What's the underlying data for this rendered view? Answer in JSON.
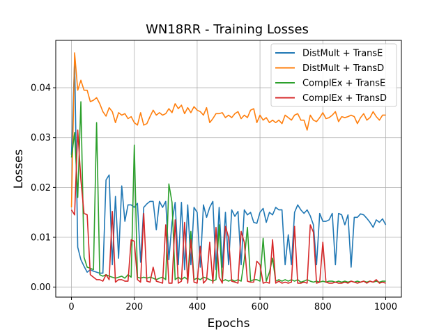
{
  "chart_data": {
    "type": "line",
    "title": "WN18RR - Training Losses",
    "xlabel": "Epochs",
    "ylabel": "Losses",
    "xlim": [
      -50,
      1050
    ],
    "ylim": [
      -0.002,
      0.0495
    ],
    "xticks": [
      0,
      200,
      400,
      600,
      800,
      1000
    ],
    "xtick_labels": [
      "0",
      "200",
      "400",
      "600",
      "800",
      "1000"
    ],
    "yticks": [
      0.0,
      0.01,
      0.02,
      0.03,
      0.04
    ],
    "ytick_labels": [
      "0.00",
      "0.01",
      "0.02",
      "0.03",
      "0.04"
    ],
    "grid": true,
    "legend_position": "top-right",
    "x": [
      0,
      10,
      20,
      30,
      40,
      50,
      60,
      70,
      80,
      90,
      100,
      110,
      120,
      130,
      140,
      150,
      160,
      170,
      180,
      190,
      200,
      210,
      220,
      230,
      240,
      250,
      260,
      270,
      280,
      290,
      300,
      310,
      320,
      330,
      340,
      350,
      360,
      370,
      380,
      390,
      400,
      410,
      420,
      430,
      440,
      450,
      460,
      470,
      480,
      490,
      500,
      510,
      520,
      530,
      540,
      550,
      560,
      570,
      580,
      590,
      600,
      610,
      620,
      630,
      640,
      650,
      660,
      670,
      680,
      690,
      700,
      710,
      720,
      730,
      740,
      750,
      760,
      770,
      780,
      790,
      800,
      810,
      820,
      830,
      840,
      850,
      860,
      870,
      880,
      890,
      900,
      910,
      920,
      930,
      940,
      950,
      960,
      970,
      980,
      990,
      1000
    ],
    "series": [
      {
        "name": "DistMult + TransE",
        "color": "#1f77b4",
        "values": [
          0.0265,
          0.0455,
          0.008,
          0.0055,
          0.0042,
          0.003,
          0.0035,
          0.0032,
          0.003,
          0.0028,
          0.0028,
          0.0215,
          0.0225,
          0.0045,
          0.0182,
          0.0058,
          0.0203,
          0.0132,
          0.0165,
          0.0165,
          0.016,
          0.0168,
          0.005,
          0.016,
          0.0167,
          0.0172,
          0.0172,
          0.0115,
          0.0172,
          0.016,
          0.0172,
          0.0055,
          0.013,
          0.017,
          0.0045,
          0.017,
          0.0035,
          0.0165,
          0.0045,
          0.016,
          0.015,
          0.004,
          0.0165,
          0.014,
          0.016,
          0.0172,
          0.0035,
          0.016,
          0.004,
          0.015,
          0.0045,
          0.0155,
          0.0142,
          0.0152,
          0.0045,
          0.0155,
          0.0145,
          0.015,
          0.013,
          0.0128,
          0.015,
          0.0158,
          0.013,
          0.015,
          0.0145,
          0.016,
          0.0155,
          0.0155,
          0.0045,
          0.0105,
          0.0045,
          0.015,
          0.0165,
          0.0155,
          0.0148,
          0.0155,
          0.0143,
          0.0125,
          0.0045,
          0.0148,
          0.0132,
          0.0132,
          0.0135,
          0.0148,
          0.0045,
          0.0148,
          0.0145,
          0.0125,
          0.0145,
          0.004,
          0.014,
          0.014,
          0.0147,
          0.0145,
          0.0138,
          0.013,
          0.012,
          0.0135,
          0.013,
          0.0137,
          0.0125
        ]
      },
      {
        "name": "DistMult + TransD",
        "color": "#ff7f0e",
        "values": [
          0.016,
          0.047,
          0.0395,
          0.0415,
          0.0395,
          0.0395,
          0.0372,
          0.0375,
          0.038,
          0.0368,
          0.0352,
          0.0343,
          0.036,
          0.0352,
          0.033,
          0.035,
          0.0345,
          0.0348,
          0.0338,
          0.0342,
          0.033,
          0.0325,
          0.035,
          0.0325,
          0.0328,
          0.0342,
          0.0355,
          0.0345,
          0.035,
          0.0345,
          0.0348,
          0.0358,
          0.035,
          0.0368,
          0.0358,
          0.0365,
          0.0348,
          0.036,
          0.035,
          0.0362,
          0.0355,
          0.0352,
          0.0345,
          0.036,
          0.033,
          0.0338,
          0.0348,
          0.0348,
          0.035,
          0.034,
          0.0345,
          0.034,
          0.0348,
          0.0352,
          0.0338,
          0.0345,
          0.034,
          0.0355,
          0.0358,
          0.033,
          0.0345,
          0.0335,
          0.034,
          0.033,
          0.0335,
          0.033,
          0.0335,
          0.0328,
          0.0345,
          0.034,
          0.0335,
          0.0345,
          0.0348,
          0.0335,
          0.0335,
          0.0315,
          0.0345,
          0.0335,
          0.0332,
          0.034,
          0.035,
          0.0338,
          0.034,
          0.0345,
          0.0352,
          0.0332,
          0.0342,
          0.034,
          0.0342,
          0.0345,
          0.0342,
          0.0328,
          0.034,
          0.0348,
          0.0335,
          0.034,
          0.0352,
          0.0342,
          0.0335,
          0.0345,
          0.0345
        ]
      },
      {
        "name": "ComplEx + TransE",
        "color": "#2ca02c",
        "values": [
          0.026,
          0.031,
          0.018,
          0.0372,
          0.006,
          0.004,
          0.0038,
          0.0035,
          0.033,
          0.0025,
          0.0022,
          0.0025,
          0.0022,
          0.002,
          0.0018,
          0.002,
          0.0022,
          0.0018,
          0.0025,
          0.002,
          0.0285,
          0.002,
          0.0018,
          0.002,
          0.0018,
          0.002,
          0.0018,
          0.0015,
          0.0018,
          0.002,
          0.0015,
          0.0207,
          0.017,
          0.0015,
          0.002,
          0.0015,
          0.002,
          0.0015,
          0.0112,
          0.0015,
          0.0018,
          0.0015,
          0.002,
          0.0018,
          0.0015,
          0.0012,
          0.0015,
          0.0125,
          0.0012,
          0.0015,
          0.0012,
          0.0015,
          0.0012,
          0.0015,
          0.0012,
          0.0055,
          0.012,
          0.0012,
          0.0015,
          0.0015,
          0.0012,
          0.0098,
          0.0012,
          0.003,
          0.0058,
          0.0012,
          0.0015,
          0.0012,
          0.0015,
          0.0012,
          0.0015,
          0.0012,
          0.0015,
          0.001,
          0.0012,
          0.0015,
          0.0012,
          0.001,
          0.0012,
          0.001,
          0.0012,
          0.001,
          0.0012,
          0.0012,
          0.001,
          0.0012,
          0.001,
          0.0012,
          0.001,
          0.0012,
          0.001,
          0.0012,
          0.001,
          0.0012,
          0.001,
          0.0012,
          0.001,
          0.0012,
          0.001,
          0.0012,
          0.0012
        ]
      },
      {
        "name": "ComplEx + TransD",
        "color": "#d62728",
        "values": [
          0.0155,
          0.0145,
          0.0315,
          0.0215,
          0.0148,
          0.0145,
          0.0025,
          0.002,
          0.0015,
          0.0015,
          0.0012,
          0.0025,
          0.0015,
          0.0152,
          0.001,
          0.0015,
          0.0015,
          0.0012,
          0.0012,
          0.0095,
          0.0092,
          0.0015,
          0.001,
          0.0148,
          0.0012,
          0.001,
          0.004,
          0.0012,
          0.001,
          0.0008,
          0.0125,
          0.0008,
          0.0008,
          0.0135,
          0.0008,
          0.0012,
          0.013,
          0.0008,
          0.0095,
          0.001,
          0.0008,
          0.0082,
          0.0008,
          0.0015,
          0.009,
          0.0008,
          0.012,
          0.002,
          0.0008,
          0.0122,
          0.01,
          0.0012,
          0.001,
          0.0008,
          0.0112,
          0.009,
          0.0012,
          0.001,
          0.001,
          0.0052,
          0.0045,
          0.0008,
          0.001,
          0.0008,
          0.0095,
          0.0008,
          0.0012,
          0.0008,
          0.001,
          0.0008,
          0.001,
          0.0122,
          0.0008,
          0.0008,
          0.001,
          0.0008,
          0.0125,
          0.011,
          0.0008,
          0.001,
          0.009,
          0.001,
          0.0008,
          0.0008,
          0.001,
          0.0008,
          0.0008,
          0.001,
          0.0008,
          0.0012,
          0.001,
          0.0008,
          0.001,
          0.0012,
          0.0008,
          0.0012,
          0.001,
          0.0015,
          0.0008,
          0.001,
          0.0008
        ]
      }
    ]
  }
}
